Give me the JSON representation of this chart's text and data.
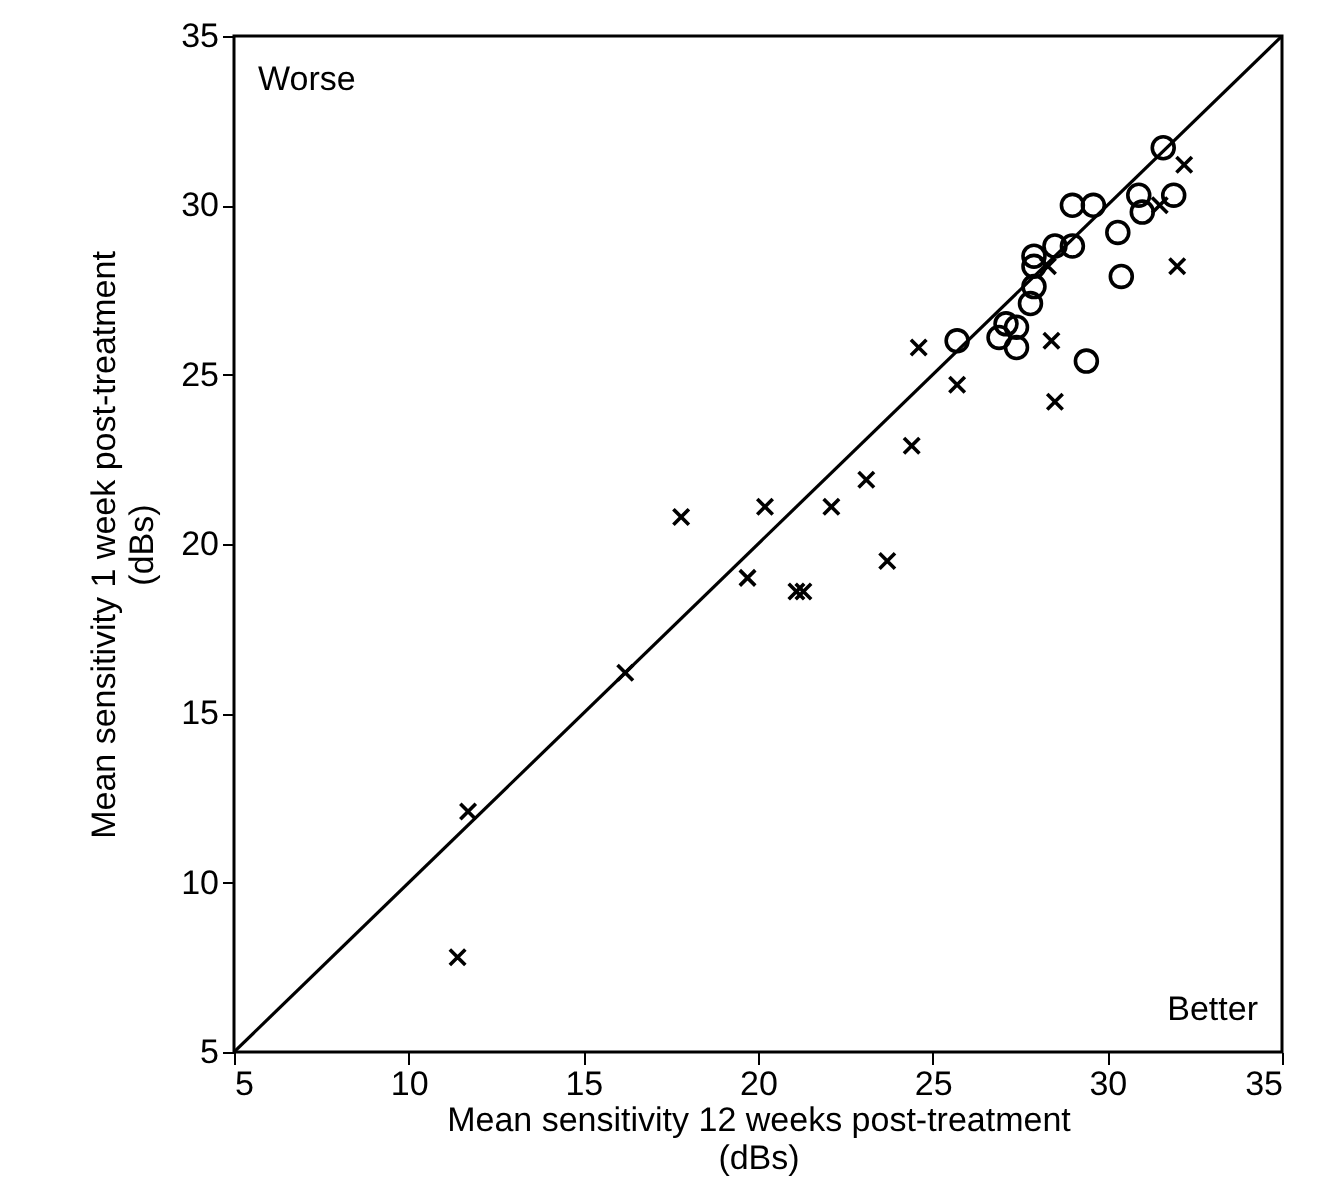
{
  "chart_data": {
    "type": "scatter",
    "xlabel": "Mean sensitivity 12 weeks post-treatment\n(dBs)",
    "ylabel": "Mean sensitivity 1 week post-treatment\n(dBs)",
    "xlim": [
      5,
      35
    ],
    "ylim": [
      5,
      35
    ],
    "xticks": [
      5,
      10,
      15,
      20,
      25,
      30,
      35
    ],
    "yticks": [
      5,
      10,
      15,
      20,
      25,
      30,
      35
    ],
    "grid": false,
    "annotations": [
      "Worse",
      "Better"
    ],
    "series": [
      {
        "type": "line",
        "color": "#000000",
        "marker": "none",
        "line_style": "solid",
        "x": [
          5,
          35
        ],
        "values": [
          5,
          35
        ]
      },
      {
        "color": "#000000",
        "marker": "circle",
        "x": [
          31.6,
          30.9,
          31.9,
          31.0,
          29.0,
          29.6,
          30.3,
          30.4,
          28.5,
          29.0,
          27.9,
          27.9,
          27.9,
          27.8,
          25.7,
          26.9,
          27.1,
          27.4,
          27.4,
          29.4
        ],
        "values": [
          31.7,
          30.3,
          30.3,
          29.8,
          30.0,
          30.0,
          29.2,
          27.9,
          28.8,
          28.8,
          28.5,
          28.2,
          27.6,
          27.1,
          26.0,
          26.1,
          26.5,
          26.4,
          25.8,
          25.4
        ]
      },
      {
        "color": "#000000",
        "marker": "cross",
        "x": [
          11.7,
          11.4,
          16.2,
          17.8,
          19.7,
          20.2,
          21.1,
          21.3,
          22.1,
          23.1,
          23.7,
          24.4,
          24.6,
          25.7,
          28.4,
          28.5,
          28.3,
          32.0,
          32.2,
          31.5
        ],
        "values": [
          12.1,
          7.8,
          16.2,
          20.8,
          19.0,
          21.1,
          18.6,
          18.6,
          21.1,
          21.9,
          19.5,
          22.9,
          25.8,
          24.7,
          26.0,
          24.2,
          28.2,
          28.2,
          31.2,
          30.0
        ]
      }
    ]
  }
}
